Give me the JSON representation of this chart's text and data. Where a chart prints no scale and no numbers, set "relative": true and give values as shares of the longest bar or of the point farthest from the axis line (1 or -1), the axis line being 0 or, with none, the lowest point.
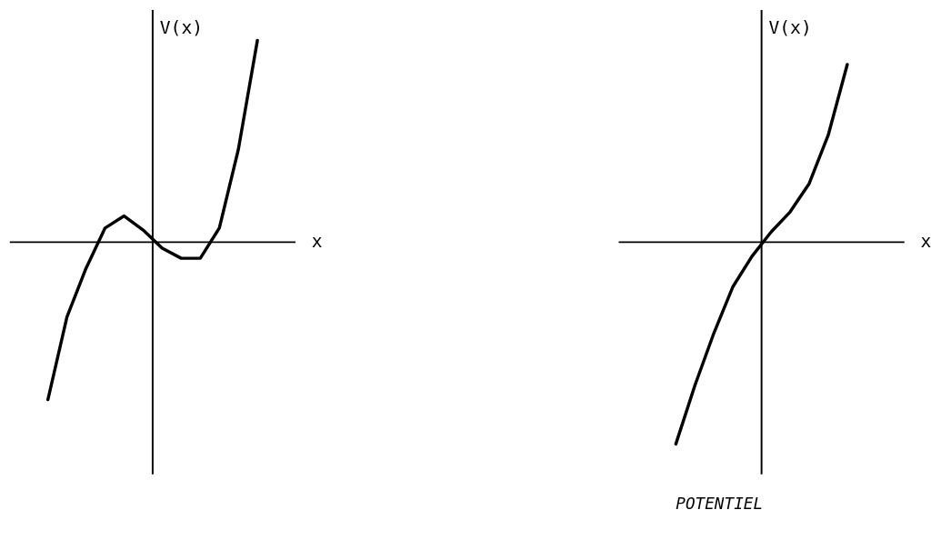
{
  "chart_data": [
    {
      "type": "line",
      "relative": true,
      "xlabel": "x",
      "ylabel": "V(x)",
      "legend": false,
      "marker": "none",
      "line_style": "solid",
      "categories": [
        null,
        null,
        null,
        null,
        null,
        null,
        null,
        null,
        null,
        null,
        null,
        null,
        null,
        null,
        null,
        null
      ],
      "series": [
        {
          "color": "#000000",
          "values": [
            null,
            null,
            -0.78,
            -0.37,
            -0.13,
            0.07,
            0.13,
            0.06,
            -0.03,
            -0.08,
            -0.08,
            0.07,
            0.46,
            1,
            null,
            null
          ]
        }
      ]
    },
    {
      "type": "line",
      "relative": true,
      "xlabel": "x",
      "ylabel": "V(x)",
      "legend": false,
      "marker": "none",
      "line_style": "solid",
      "annotations": [
        "POTENTIEL"
      ],
      "categories": [
        null,
        null,
        null,
        null,
        null,
        null,
        null,
        null,
        null,
        null,
        null,
        null,
        null,
        null,
        null,
        null
      ],
      "series": [
        {
          "color": "#000000",
          "values": [
            null,
            null,
            null,
            -1,
            -0.71,
            -0.45,
            -0.22,
            -0.07,
            0.05,
            0.15,
            0.29,
            0.53,
            0.88,
            null,
            null,
            null
          ]
        }
      ]
    }
  ]
}
